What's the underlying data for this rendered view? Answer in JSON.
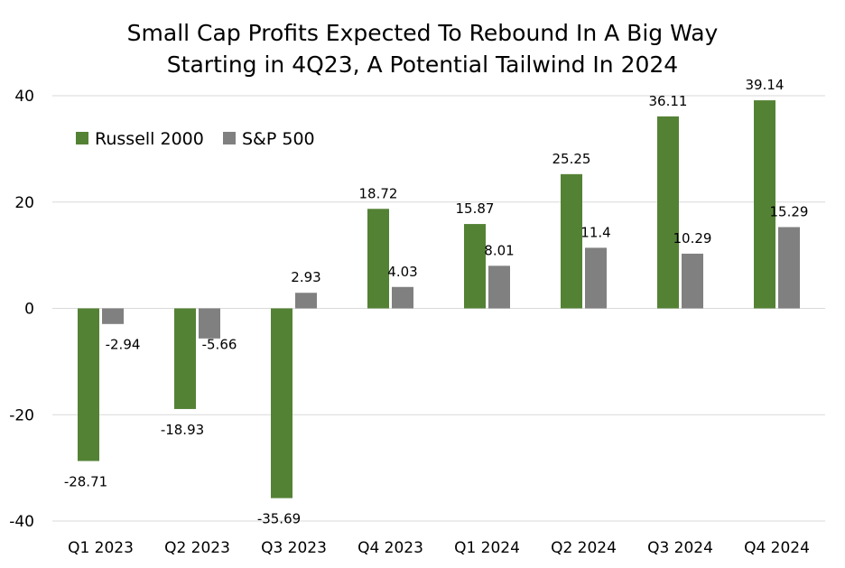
{
  "chart_data": {
    "type": "bar",
    "title": "Small Cap Profits Expected To Rebound In A Big Way",
    "subtitle": "Starting in 4Q23, A Potential Tailwind In 2024",
    "categories": [
      "Q1 2023",
      "Q2 2023",
      "Q3 2023",
      "Q4 2023",
      "Q1 2024",
      "Q2 2024",
      "Q3 2024",
      "Q4 2024"
    ],
    "series": [
      {
        "name": "Russell 2000",
        "color": "#548235",
        "values": [
          -28.71,
          -18.93,
          -35.69,
          18.72,
          15.87,
          25.25,
          36.11,
          39.14
        ]
      },
      {
        "name": "S&P 500",
        "color": "#808080",
        "values": [
          -2.94,
          -5.66,
          2.93,
          4.03,
          8.01,
          11.4,
          10.29,
          15.29
        ]
      }
    ],
    "ylim": [
      -40,
      40
    ],
    "yticks": [
      -40,
      -20,
      0,
      20,
      40
    ],
    "grid": true,
    "legend": "top-left",
    "gridline_color": "#d9d9d9"
  }
}
